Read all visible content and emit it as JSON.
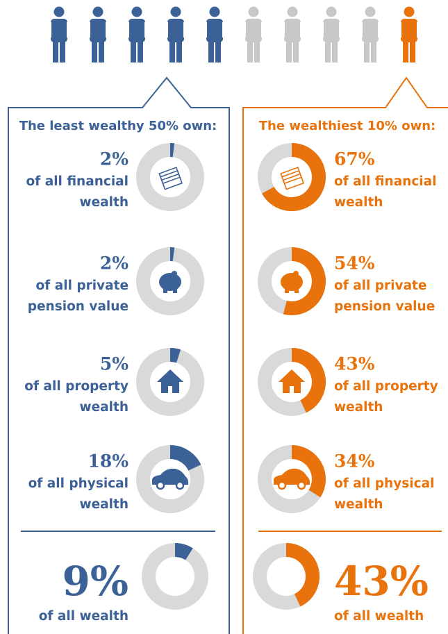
{
  "left": {
    "title": "The least wealthy 50% own:",
    "color": "#3b6196",
    "items": [
      {
        "value": 2,
        "label": "2%",
        "lines": [
          "of all financial",
          "wealth"
        ]
      },
      {
        "value": 2,
        "label": "2%",
        "lines": [
          "of all private",
          "pension value"
        ]
      },
      {
        "value": 5,
        "label": "5%",
        "lines": [
          "of all property",
          "wealth"
        ]
      },
      {
        "value": 18,
        "label": "18%",
        "lines": [
          "of all physical",
          "wealth"
        ]
      }
    ],
    "total": {
      "value": 9,
      "label": "9%",
      "text": "of all wealth"
    }
  },
  "right": {
    "title": "The wealthiest 10% own:",
    "color": "#e8730c",
    "items": [
      {
        "value": 67,
        "label": "67%",
        "lines": [
          "of all financial",
          "wealth"
        ]
      },
      {
        "value": 54,
        "label": "54%",
        "lines": [
          "of all private",
          "pension value"
        ]
      },
      {
        "value": 43,
        "label": "43%",
        "lines": [
          "of all property",
          "wealth"
        ]
      },
      {
        "value": 34,
        "label": "34%",
        "lines": [
          "of all physical",
          "wealth"
        ]
      }
    ],
    "total": {
      "value": 43,
      "label": "43%",
      "text": "of all wealth"
    }
  }
}
